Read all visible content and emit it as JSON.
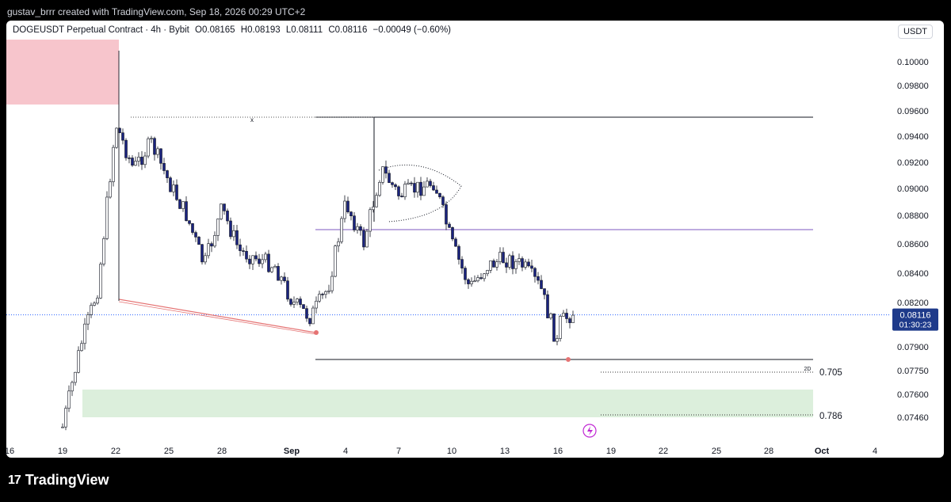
{
  "header": {
    "credit": "gustav_brrr created with TradingView.com, Sep 18, 2026 00:29 UTC+2"
  },
  "legend": {
    "symbol": "DOGEUSDT Perpetual Contract · 4h · Bybit",
    "open": "O0.08165",
    "high": "H0.08193",
    "low": "L0.08111",
    "close": "C0.08116",
    "change": "−0.00049 (−0.60%)"
  },
  "currency_button": "USDT",
  "price_label": {
    "value": "0.08116",
    "countdown": "01:30:23"
  },
  "fib_labels": [
    "0.705",
    "0.786"
  ],
  "zone_tag": "2D",
  "brand": "TradingView",
  "colors": {
    "bull": "#ffffff",
    "bear": "#1a237e",
    "up_stroke": "#131722",
    "accent": "#2962ff",
    "purple": "#7e57c2"
  },
  "chart_data": {
    "type": "candlestick",
    "title": "",
    "x_tick_labels": [
      "16",
      "19",
      "22",
      "25",
      "28",
      "Sep",
      "4",
      "7",
      "10",
      "13",
      "16",
      "19",
      "22",
      "25",
      "28",
      "Oct",
      "4"
    ],
    "y_tick_labels": [
      "0.10000",
      "0.09800",
      "0.09600",
      "0.09400",
      "0.09200",
      "0.09000",
      "0.08800",
      "0.08600",
      "0.08400",
      "0.08200",
      "0.07900",
      "0.07750",
      "0.07600",
      "0.07460"
    ],
    "ylim": [
      0.0728,
      0.1016
    ],
    "last_close": 0.08116,
    "price_path": [
      {
        "date": "Aug 19",
        "price": 0.074
      },
      {
        "date": "Aug 20",
        "price": 0.079
      },
      {
        "date": "Aug 21",
        "price": 0.083
      },
      {
        "date": "Aug 22",
        "price": 0.095
      },
      {
        "date": "Aug 23",
        "price": 0.0915
      },
      {
        "date": "Aug 24",
        "price": 0.0935
      },
      {
        "date": "Aug 25",
        "price": 0.0905
      },
      {
        "date": "Aug 26",
        "price": 0.088
      },
      {
        "date": "Aug 27",
        "price": 0.0845
      },
      {
        "date": "Aug 28",
        "price": 0.0885
      },
      {
        "date": "Aug 29",
        "price": 0.0855
      },
      {
        "date": "Aug 30",
        "price": 0.085
      },
      {
        "date": "Aug 31",
        "price": 0.0845
      },
      {
        "date": "Sep 1",
        "price": 0.082
      },
      {
        "date": "Sep 2",
        "price": 0.081
      },
      {
        "date": "Sep 3",
        "price": 0.083
      },
      {
        "date": "Sep 4",
        "price": 0.089
      },
      {
        "date": "Sep 5",
        "price": 0.086
      },
      {
        "date": "Sep 6",
        "price": 0.0915
      },
      {
        "date": "Sep 7",
        "price": 0.0895
      },
      {
        "date": "Sep 8",
        "price": 0.09
      },
      {
        "date": "Sep 9",
        "price": 0.0905
      },
      {
        "date": "Sep 10",
        "price": 0.086
      },
      {
        "date": "Sep 11",
        "price": 0.083
      },
      {
        "date": "Sep 12",
        "price": 0.0845
      },
      {
        "date": "Sep 13",
        "price": 0.085
      },
      {
        "date": "Sep 14",
        "price": 0.0845
      },
      {
        "date": "Sep 15",
        "price": 0.083
      },
      {
        "date": "Sep 16",
        "price": 0.079
      },
      {
        "date": "Sep 16",
        "price": 0.0805
      },
      {
        "date": "Sep 17",
        "price": 0.0815
      }
    ],
    "annotations": {
      "supply_zone": [
        0.0965,
        0.1016
      ],
      "fib_0705_zone": [
        0.0774,
        0.0779
      ],
      "fib_0786_zone": [
        0.0746,
        0.0763
      ],
      "range_high": 0.0955,
      "purple_level": 0.087,
      "range_low": 0.0782,
      "dotted_high": 0.0955
    }
  }
}
